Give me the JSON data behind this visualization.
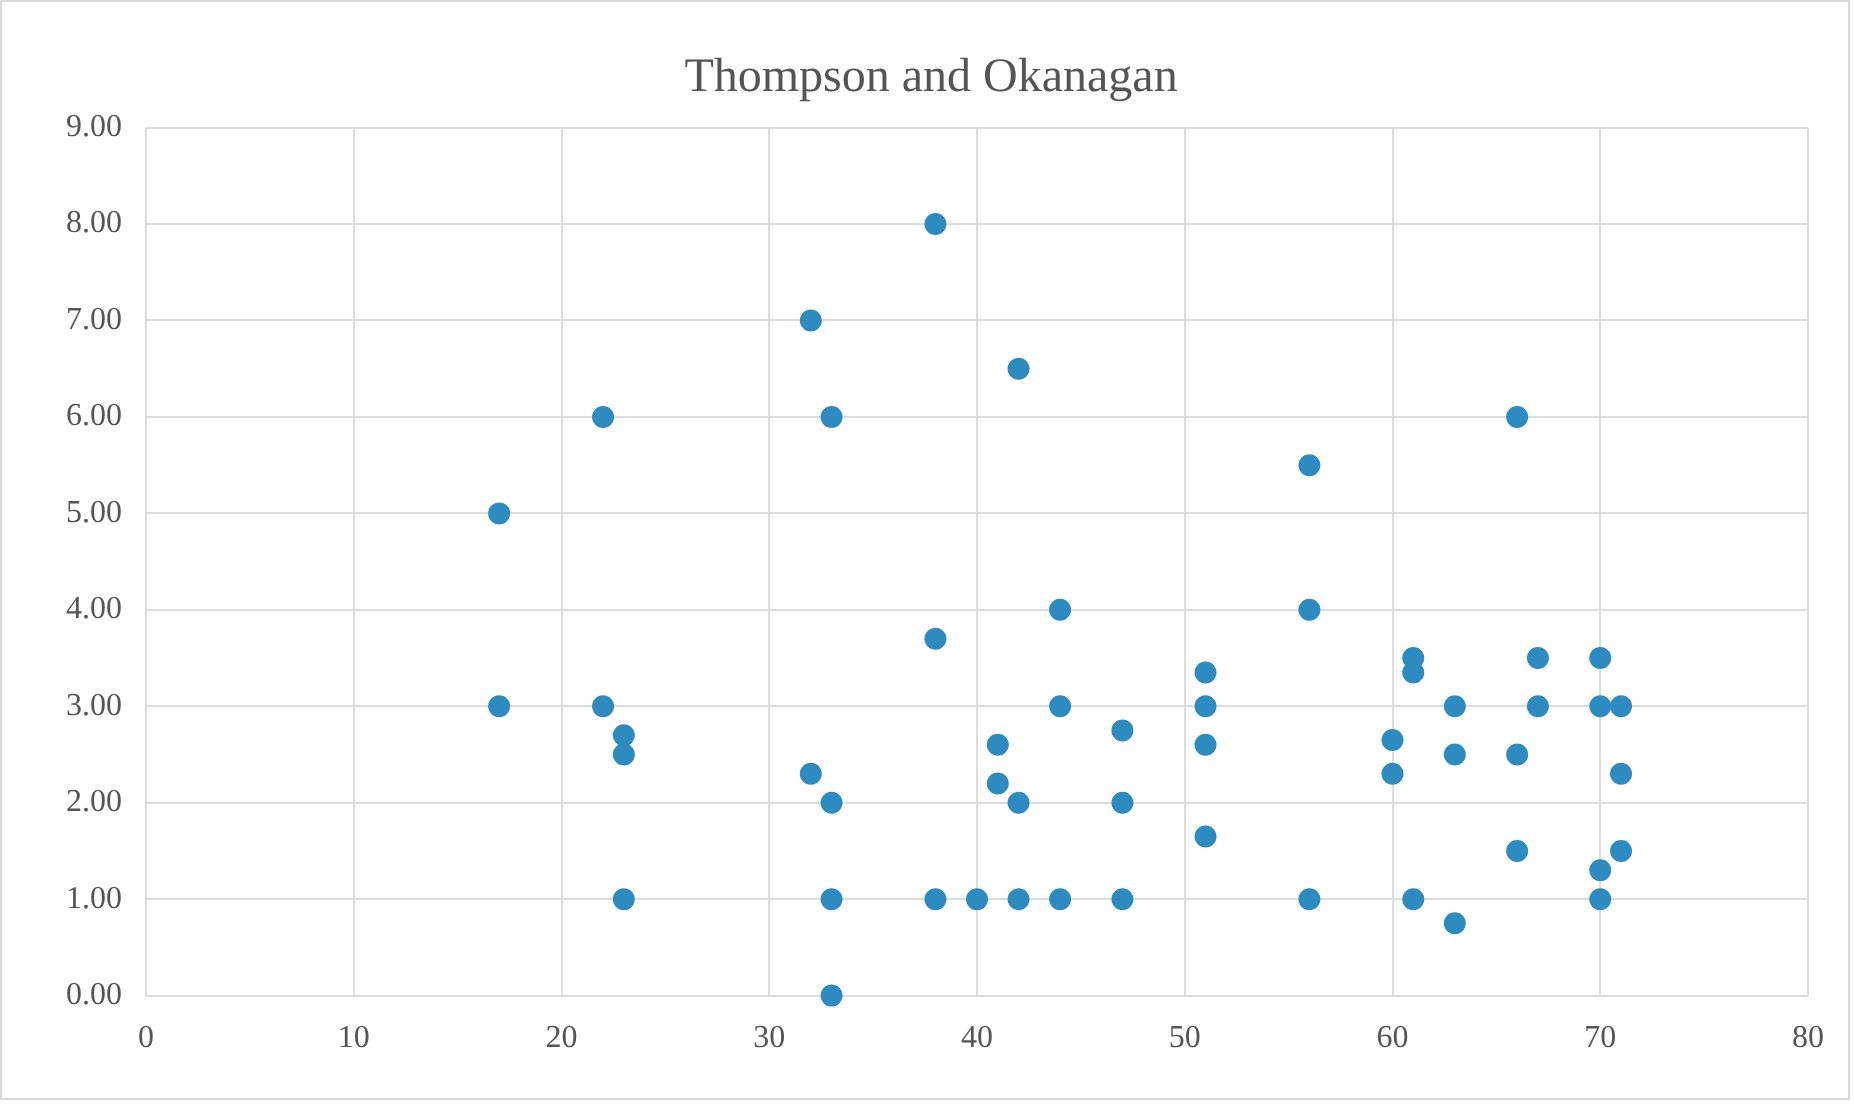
{
  "chart_data": {
    "type": "scatter",
    "title": "Thompson and Okanagan",
    "x": [
      17,
      17,
      22,
      22,
      23,
      23,
      23,
      32,
      32,
      33,
      33,
      33,
      33,
      38,
      38,
      38,
      40,
      41,
      41,
      42,
      42,
      42,
      44,
      44,
      44,
      47,
      47,
      47,
      51,
      51,
      51,
      51,
      56,
      56,
      56,
      60,
      60,
      61,
      61,
      61,
      63,
      63,
      63,
      66,
      66,
      66,
      67,
      67,
      70,
      70,
      70,
      70,
      71,
      71,
      71
    ],
    "values": [
      5,
      3,
      6,
      3,
      2.7,
      2.5,
      1,
      7,
      2.3,
      6,
      2,
      1,
      0,
      8,
      3.7,
      1,
      1,
      2.6,
      2.2,
      6.5,
      2,
      1,
      4,
      3,
      1,
      2.75,
      2,
      1,
      3.35,
      3,
      2.6,
      1.65,
      5.5,
      4,
      1,
      2.65,
      2.3,
      3.5,
      3.35,
      1,
      3,
      2.5,
      0.75,
      6,
      2.5,
      1.5,
      3.5,
      3,
      3.5,
      3,
      1.3,
      1,
      3,
      2.3,
      1.5
    ],
    "color": "#2e8bc0",
    "marker": "circle",
    "grid": true,
    "legend": false,
    "xlim": [
      0,
      80
    ],
    "xticks": [
      0,
      10,
      20,
      30,
      40,
      50,
      60,
      70,
      80
    ],
    "ylim": [
      0,
      9
    ],
    "yticks": [
      {
        "value": 0,
        "label": "0.00"
      },
      {
        "value": 1,
        "label": "1.00"
      },
      {
        "value": 2,
        "label": "2.00"
      },
      {
        "value": 3,
        "label": "3.00"
      },
      {
        "value": 4,
        "label": "4.00"
      },
      {
        "value": 5,
        "label": "5.00"
      },
      {
        "value": 6,
        "label": "6.00"
      },
      {
        "value": 7,
        "label": "7.00"
      },
      {
        "value": 8,
        "label": "8.00"
      },
      {
        "value": 9,
        "label": "9.00"
      }
    ]
  }
}
